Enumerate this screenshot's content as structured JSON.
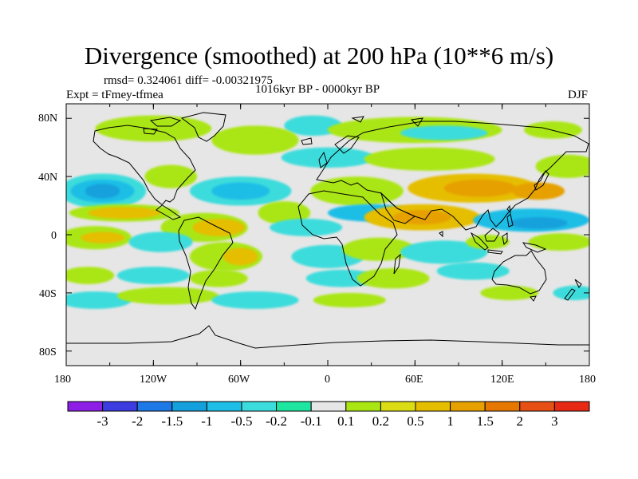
{
  "title": "Divergence (smoothed) at 200 hPa (10**6 m/s)",
  "stats_line": "rmsd= 0.324061 diff= -0.00321975",
  "experiment_label": "Expt = tFmey-tfmea",
  "period_label": "1016kyr BP - 0000kyr BP",
  "season_label": "DJF",
  "map": {
    "projection": "cylindrical equidistant",
    "lon_range": [
      -180,
      180
    ],
    "lat_range": [
      -90,
      90
    ],
    "lon_ticks": [
      "180",
      "120W",
      "60W",
      "0",
      "60E",
      "120E",
      "180"
    ],
    "lat_ticks": [
      "80N",
      "40N",
      "0",
      "40S",
      "80S"
    ],
    "background_color": "#e6e6e6"
  },
  "colorbar": {
    "colors": [
      "#8c1ee6",
      "#3c3ce0",
      "#1e78e6",
      "#14a0dc",
      "#1ebee6",
      "#3cdcdc",
      "#1ee6a0",
      "#e6e6e6",
      "#aae614",
      "#dcdc14",
      "#e6be00",
      "#e6a000",
      "#e67800",
      "#e65014",
      "#e62814"
    ],
    "labels": [
      "-3",
      "-2",
      "-1.5",
      "-1",
      "-0.5",
      "-0.2",
      "-0.1",
      "0.1",
      "0.2",
      "0.5",
      "1",
      "1.5",
      "2",
      "3"
    ]
  },
  "fields": [
    {
      "color": "#3cdcdc",
      "lon": -10,
      "lat": 75,
      "rlon": 20,
      "rlat": 7
    },
    {
      "color": "#aae614",
      "lon": -120,
      "lat": 73,
      "rlon": 40,
      "rlat": 9
    },
    {
      "color": "#aae614",
      "lon": 60,
      "lat": 72,
      "rlon": 60,
      "rlat": 9
    },
    {
      "color": "#3cdcdc",
      "lon": 80,
      "lat": 70,
      "rlon": 30,
      "rlat": 5
    },
    {
      "color": "#aae614",
      "lon": 155,
      "lat": 72,
      "rlon": 20,
      "rlat": 6
    },
    {
      "color": "#aae614",
      "lon": -50,
      "lat": 65,
      "rlon": 30,
      "rlat": 10
    },
    {
      "color": "#3cdcdc",
      "lon": 0,
      "lat": 53,
      "rlon": 32,
      "rlat": 7
    },
    {
      "color": "#aae614",
      "lon": 70,
      "lat": 52,
      "rlon": 45,
      "rlat": 8
    },
    {
      "color": "#aae614",
      "lon": 165,
      "lat": 47,
      "rlon": 22,
      "rlat": 8
    },
    {
      "color": "#3cdcdc",
      "lon": -155,
      "lat": 30,
      "rlon": 30,
      "rlat": 12
    },
    {
      "color": "#1ebee6",
      "lon": -155,
      "lat": 30,
      "rlon": 22,
      "rlat": 8
    },
    {
      "color": "#14a0dc",
      "lon": -155,
      "lat": 30,
      "rlon": 12,
      "rlat": 5
    },
    {
      "color": "#3cdcdc",
      "lon": -60,
      "lat": 30,
      "rlon": 35,
      "rlat": 10
    },
    {
      "color": "#1ebee6",
      "lon": -60,
      "lat": 30,
      "rlon": 20,
      "rlat": 6
    },
    {
      "color": "#aae614",
      "lon": -108,
      "lat": 40,
      "rlon": 18,
      "rlat": 8
    },
    {
      "color": "#aae614",
      "lon": 20,
      "lat": 30,
      "rlon": 32,
      "rlat": 10
    },
    {
      "color": "#e6be00",
      "lon": 100,
      "lat": 32,
      "rlon": 45,
      "rlat": 10
    },
    {
      "color": "#e6a000",
      "lon": 105,
      "lat": 32,
      "rlon": 25,
      "rlat": 6
    },
    {
      "color": "#e6a000",
      "lon": 145,
      "lat": 30,
      "rlon": 18,
      "rlat": 6
    },
    {
      "color": "#aae614",
      "lon": -140,
      "lat": 15,
      "rlon": 38,
      "rlat": 6
    },
    {
      "color": "#e6be00",
      "lon": -140,
      "lat": 15,
      "rlon": 25,
      "rlat": 4
    },
    {
      "color": "#aae614",
      "lon": -85,
      "lat": 5,
      "rlon": 30,
      "rlat": 10
    },
    {
      "color": "#e6be00",
      "lon": -75,
      "lat": 5,
      "rlon": 18,
      "rlat": 6
    },
    {
      "color": "#aae614",
      "lon": -30,
      "lat": 15,
      "rlon": 18,
      "rlat": 8
    },
    {
      "color": "#3cdcdc",
      "lon": -15,
      "lat": 5,
      "rlon": 25,
      "rlat": 6
    },
    {
      "color": "#1ebee6",
      "lon": 30,
      "lat": 15,
      "rlon": 30,
      "rlat": 6
    },
    {
      "color": "#e6be00",
      "lon": 65,
      "lat": 12,
      "rlon": 40,
      "rlat": 9
    },
    {
      "color": "#e6a000",
      "lon": 65,
      "lat": 12,
      "rlon": 20,
      "rlat": 5
    },
    {
      "color": "#1ebee6",
      "lon": 140,
      "lat": 10,
      "rlon": 40,
      "rlat": 8
    },
    {
      "color": "#14a0dc",
      "lon": 145,
      "lat": 8,
      "rlon": 20,
      "rlat": 4
    },
    {
      "color": "#aae614",
      "lon": 160,
      "lat": -5,
      "rlon": 22,
      "rlat": 6
    },
    {
      "color": "#aae614",
      "lon": -160,
      "lat": -2,
      "rlon": 25,
      "rlat": 8
    },
    {
      "color": "#e6be00",
      "lon": -155,
      "lat": -2,
      "rlon": 15,
      "rlat": 4
    },
    {
      "color": "#3cdcdc",
      "lon": -115,
      "lat": -5,
      "rlon": 22,
      "rlat": 7
    },
    {
      "color": "#aae614",
      "lon": -70,
      "lat": -15,
      "rlon": 25,
      "rlat": 10
    },
    {
      "color": "#e6be00",
      "lon": -60,
      "lat": -15,
      "rlon": 12,
      "rlat": 6
    },
    {
      "color": "#3cdcdc",
      "lon": 0,
      "lat": -15,
      "rlon": 25,
      "rlat": 8
    },
    {
      "color": "#aae614",
      "lon": 35,
      "lat": -10,
      "rlon": 25,
      "rlat": 8
    },
    {
      "color": "#3cdcdc",
      "lon": 80,
      "lat": -12,
      "rlon": 30,
      "rlat": 8
    },
    {
      "color": "#aae614",
      "lon": 110,
      "lat": -5,
      "rlon": 15,
      "rlat": 5
    },
    {
      "color": "#aae614",
      "lon": -165,
      "lat": -28,
      "rlon": 18,
      "rlat": 6
    },
    {
      "color": "#3cdcdc",
      "lon": -120,
      "lat": -28,
      "rlon": 25,
      "rlat": 6
    },
    {
      "color": "#aae614",
      "lon": -75,
      "lat": -30,
      "rlon": 20,
      "rlat": 6
    },
    {
      "color": "#3cdcdc",
      "lon": 10,
      "lat": -30,
      "rlon": 25,
      "rlat": 6
    },
    {
      "color": "#aae614",
      "lon": 45,
      "lat": -30,
      "rlon": 25,
      "rlat": 7
    },
    {
      "color": "#3cdcdc",
      "lon": 100,
      "lat": -25,
      "rlon": 25,
      "rlat": 6
    },
    {
      "color": "#3cdcdc",
      "lon": -160,
      "lat": -45,
      "rlon": 25,
      "rlat": 6
    },
    {
      "color": "#aae614",
      "lon": -110,
      "lat": -42,
      "rlon": 35,
      "rlat": 6
    },
    {
      "color": "#3cdcdc",
      "lon": -50,
      "lat": -45,
      "rlon": 30,
      "rlat": 6
    },
    {
      "color": "#aae614",
      "lon": 15,
      "lat": -45,
      "rlon": 25,
      "rlat": 5
    },
    {
      "color": "#aae614",
      "lon": 125,
      "lat": -40,
      "rlon": 20,
      "rlat": 5
    },
    {
      "color": "#3cdcdc",
      "lon": 170,
      "lat": -40,
      "rlon": 15,
      "rlat": 5
    }
  ]
}
